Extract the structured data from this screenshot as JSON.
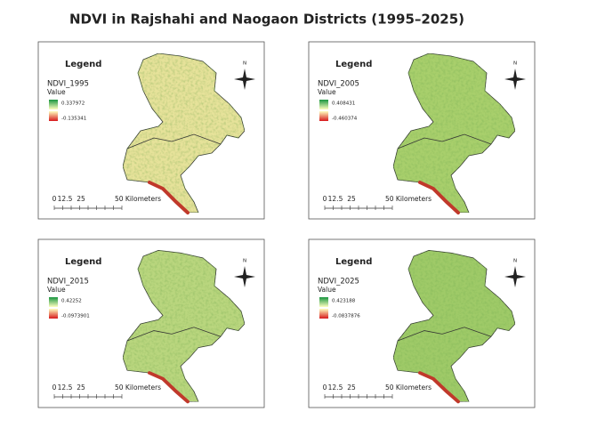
{
  "title": "NDVI in Rajshahi and Naogaon Districts (1995–2025)",
  "panels": [
    {
      "legend_title": "Legend",
      "layer": "NDVI_1995",
      "value_label": "Value",
      "high": "0.337972",
      "low": "-0.135341",
      "scale_labels": [
        "0",
        "12.5",
        "25",
        "50 Kilometers"
      ],
      "north": "N"
    },
    {
      "legend_title": "Legend",
      "layer": "NDVI_2005",
      "value_label": "Value",
      "high": "0.408431",
      "low": "-0.460374",
      "scale_labels": [
        "0",
        "12.5",
        "25",
        "50 Kilometers"
      ],
      "north": "N"
    },
    {
      "legend_title": "Legend",
      "layer": "NDVI_2015",
      "value_label": "Value",
      "high": "0.42252",
      "low": "-0.0973901",
      "scale_labels": [
        "0",
        "12.5",
        "25",
        "50 Kilometers"
      ],
      "north": "N"
    },
    {
      "legend_title": "Legend",
      "layer": "NDVI_2025",
      "value_label": "Value",
      "high": "0.423188",
      "low": "-0.0837876",
      "scale_labels": [
        "0",
        "12.5",
        "25",
        "50 Kilometers"
      ],
      "north": "N"
    }
  ]
}
